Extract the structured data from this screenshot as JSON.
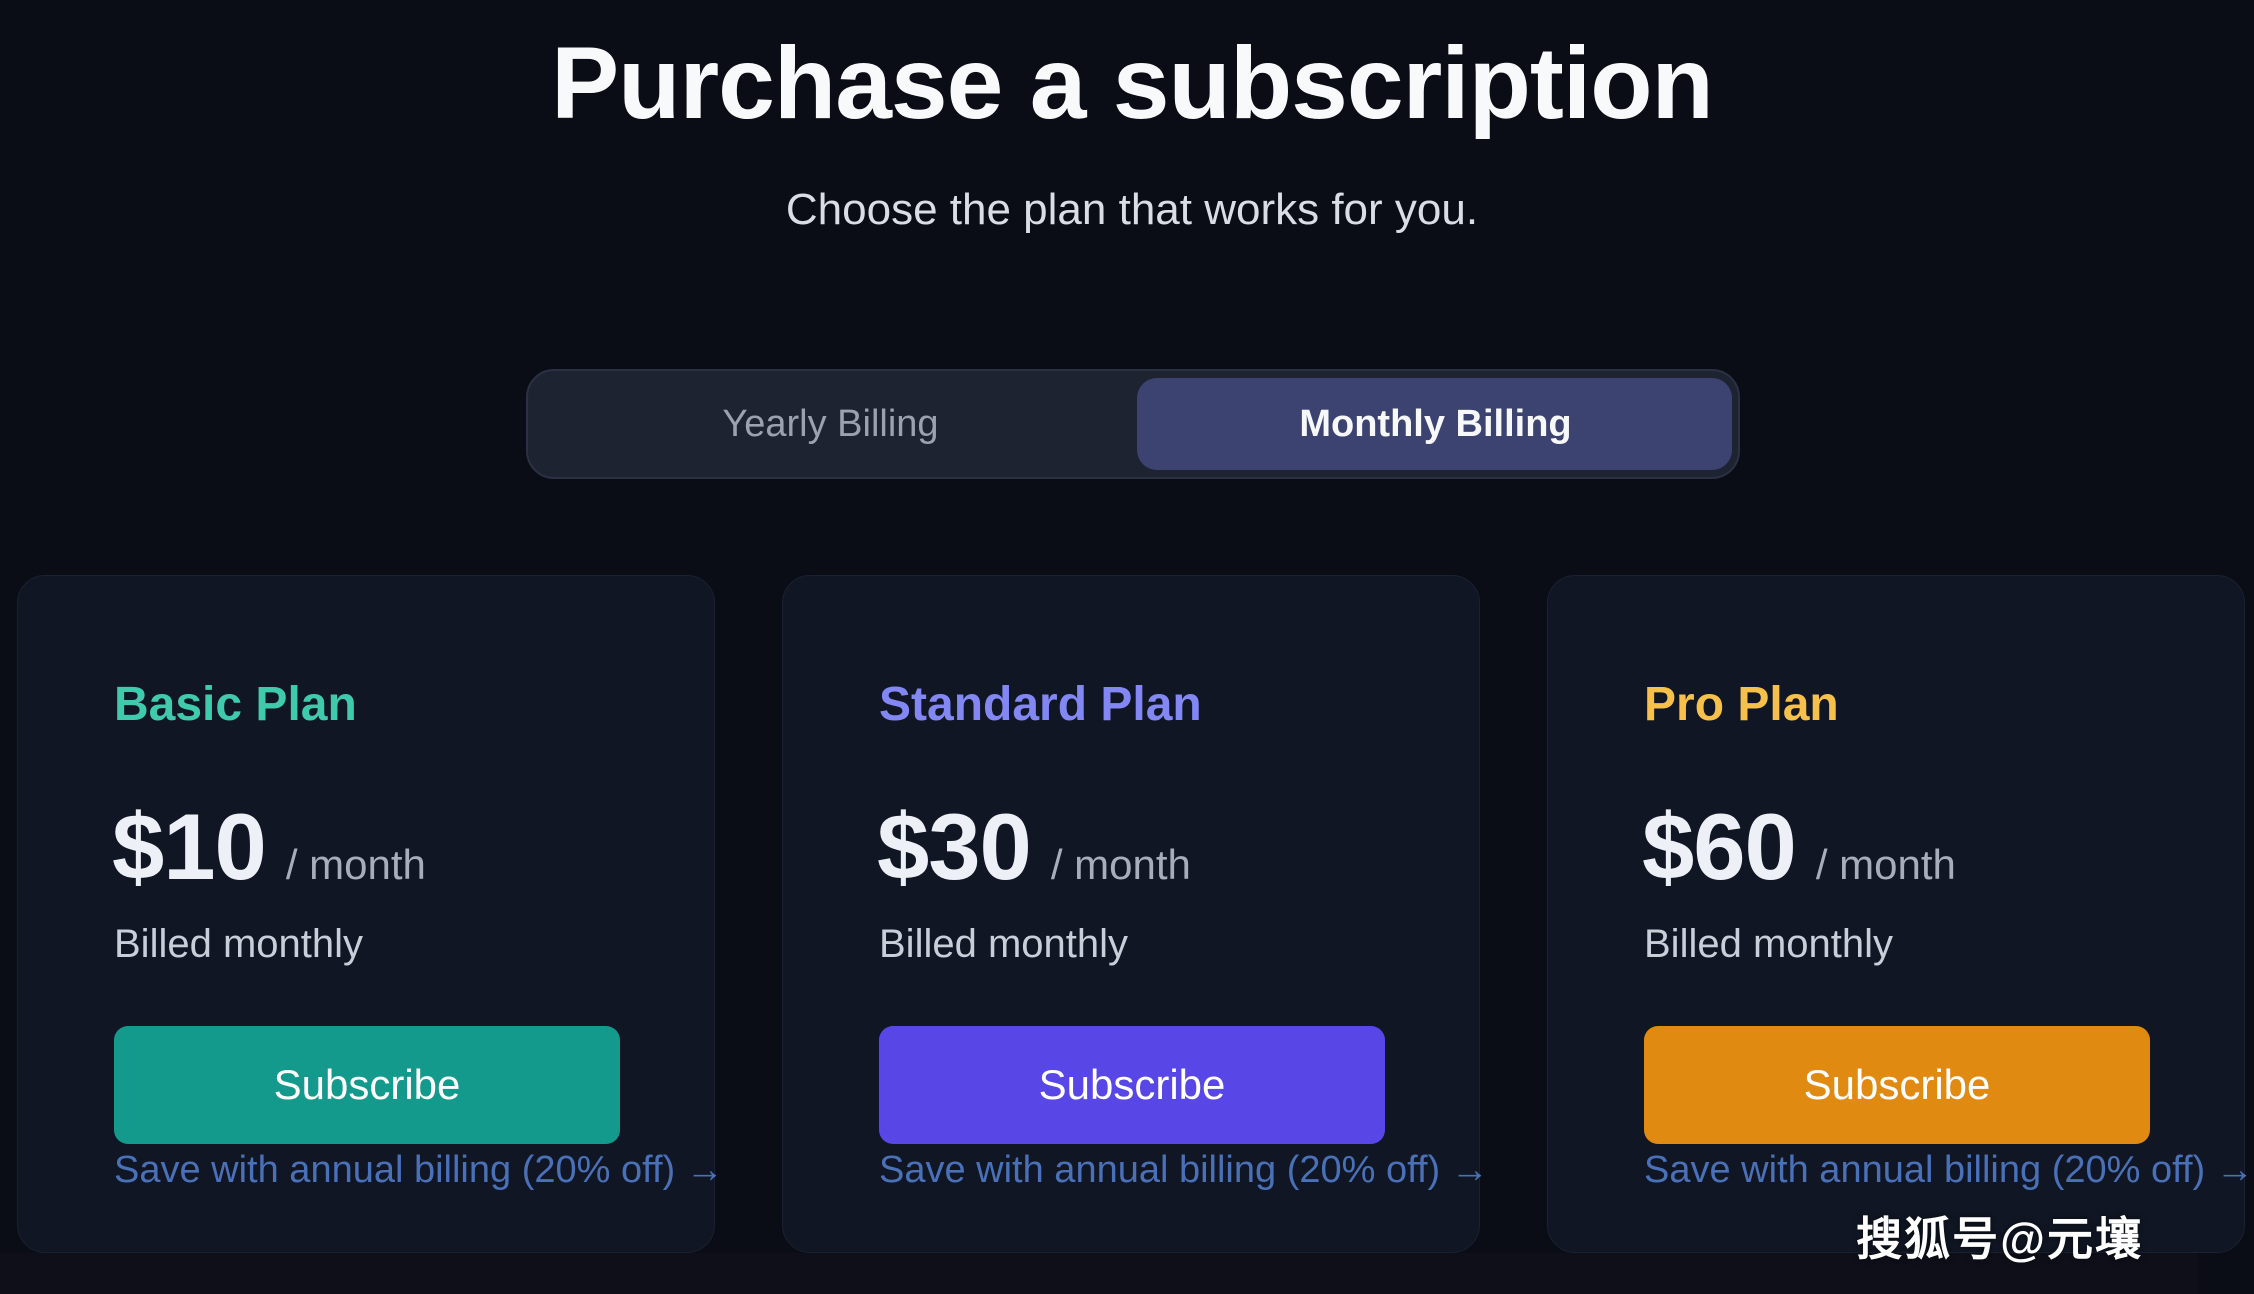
{
  "page": {
    "title": "Purchase a subscription",
    "subtitle": "Choose the plan that works for you."
  },
  "billing_toggle": {
    "yearly_label": "Yearly Billing",
    "monthly_label": "Monthly Billing",
    "selected": "Monthly Billing"
  },
  "plans": [
    {
      "name": "Basic Plan",
      "price": "$10",
      "period": "/ month",
      "billing_note": "Billed monthly",
      "subscribe_label": "Subscribe",
      "save_link": "Save with annual billing (20% off) →",
      "accent_color": "#3fc9ad",
      "button_color": "#149a8c"
    },
    {
      "name": "Standard Plan",
      "price": "$30",
      "period": "/ month",
      "billing_note": "Billed monthly",
      "subscribe_label": "Subscribe",
      "save_link": "Save with annual billing (20% off) →",
      "accent_color": "#8287f3",
      "button_color": "#5847e6"
    },
    {
      "name": "Pro Plan",
      "price": "$60",
      "period": "/ month",
      "billing_note": "Billed monthly",
      "subscribe_label": "Subscribe",
      "save_link": "Save with annual billing (20% off) →",
      "accent_color": "#f6c04a",
      "button_color": "#e08a11"
    }
  ],
  "watermark": "搜狐号@元壤",
  "colors": {
    "page_background": "#0a0d16",
    "card_background": "#101623",
    "toggle_background": "#1e2332",
    "toggle_active_background": "#3d4371",
    "link_color": "#4a70b8"
  }
}
